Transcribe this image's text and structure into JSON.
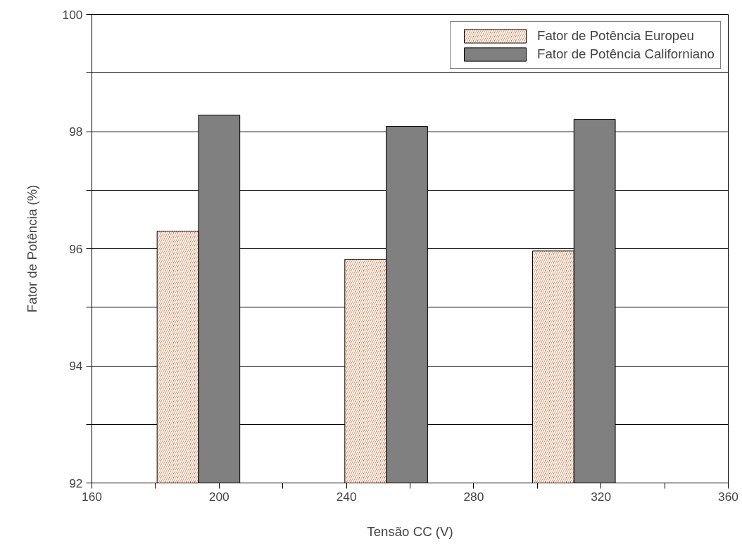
{
  "chart_data": {
    "type": "bar",
    "xlabel": "Tensão CC (V)",
    "ylabel": "Fator de Potência (%)",
    "series": [
      {
        "name": "Fator de Potência Europeu",
        "color": "#e0703a",
        "x": [
          187,
          246,
          305
        ],
        "values": [
          96.3,
          95.82,
          95.96
        ]
      },
      {
        "name": "Fator de Potência Californiano",
        "color": "#808080",
        "x": [
          200,
          259,
          318
        ],
        "values": [
          98.28,
          98.09,
          98.21
        ]
      }
    ],
    "xlim": [
      160,
      360
    ],
    "xticks": [
      160,
      {
        "value": 180,
        "label": null
      },
      200,
      {
        "value": 220,
        "label": null
      },
      240,
      {
        "value": 260,
        "label": null
      },
      280,
      {
        "value": 300,
        "label": null
      },
      320,
      {
        "value": 340,
        "label": null
      },
      360
    ],
    "ylim": [
      92,
      100
    ],
    "yticks": [
      92,
      {
        "value": 93,
        "label": null
      },
      94,
      {
        "value": 95,
        "label": null
      },
      96,
      {
        "value": 97,
        "label": null
      },
      98,
      {
        "value": 99,
        "label": null
      },
      100
    ],
    "grid": "y",
    "legend": "top right"
  }
}
